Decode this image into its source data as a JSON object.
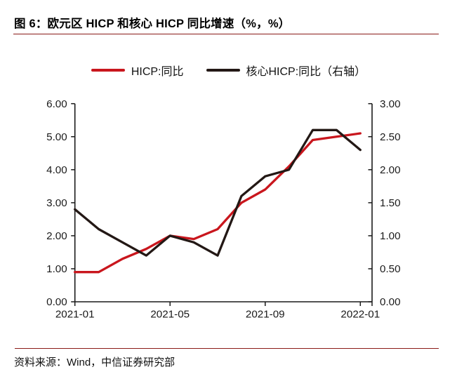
{
  "title": "图 6：欧元区 HICP 和核心 HICP 同比增速（%，%）",
  "source": "资料来源：Wind，中信证券研究部",
  "colors": {
    "hicp_line": "#c9161d",
    "core_hicp_line": "#231815",
    "divider": "#8a1a18",
    "axis": "#1a1a1a",
    "background": "#ffffff"
  },
  "legend": [
    {
      "label": "HICP:同比",
      "color": "#c9161d"
    },
    {
      "label": "核心HICP:同比（右轴）",
      "color": "#231815"
    }
  ],
  "chart_data": {
    "type": "line",
    "title": "欧元区 HICP 和核心 HICP 同比增速（%，%）",
    "x": [
      "2021-01",
      "2021-02",
      "2021-03",
      "2021-04",
      "2021-05",
      "2021-06",
      "2021-07",
      "2021-08",
      "2021-09",
      "2021-10",
      "2021-11",
      "2021-12",
      "2022-01"
    ],
    "x_ticks": {
      "indices": [
        0,
        4,
        8,
        12
      ],
      "labels": [
        "2021-01",
        "2021-05",
        "2021-09",
        "2022-01"
      ]
    },
    "left_axis": {
      "min": 0,
      "max": 6,
      "tick_values": [
        0,
        1,
        2,
        3,
        4,
        5,
        6
      ],
      "tick_labels": [
        "0.00",
        "1.00",
        "2.00",
        "3.00",
        "4.00",
        "5.00",
        "6.00"
      ]
    },
    "right_axis": {
      "min": 0,
      "max": 3,
      "tick_values": [
        0,
        0.5,
        1,
        1.5,
        2,
        2.5,
        3
      ],
      "tick_labels": [
        "0.00",
        "0.50",
        "1.00",
        "1.50",
        "2.00",
        "2.50",
        "3.00"
      ]
    },
    "series": [
      {
        "name": "HICP:同比",
        "axis": "left",
        "color": "#c9161d",
        "values": [
          0.9,
          0.9,
          1.3,
          1.6,
          2.0,
          1.9,
          2.2,
          3.0,
          3.4,
          4.1,
          4.9,
          5.0,
          5.1
        ]
      },
      {
        "name": "核心HICP:同比（右轴）",
        "axis": "right",
        "color": "#231815",
        "values": [
          1.4,
          1.1,
          0.9,
          0.7,
          1.0,
          0.9,
          0.7,
          1.6,
          1.9,
          2.0,
          2.6,
          2.6,
          2.3
        ]
      }
    ],
    "grid": false,
    "legend_position": "top-center"
  }
}
